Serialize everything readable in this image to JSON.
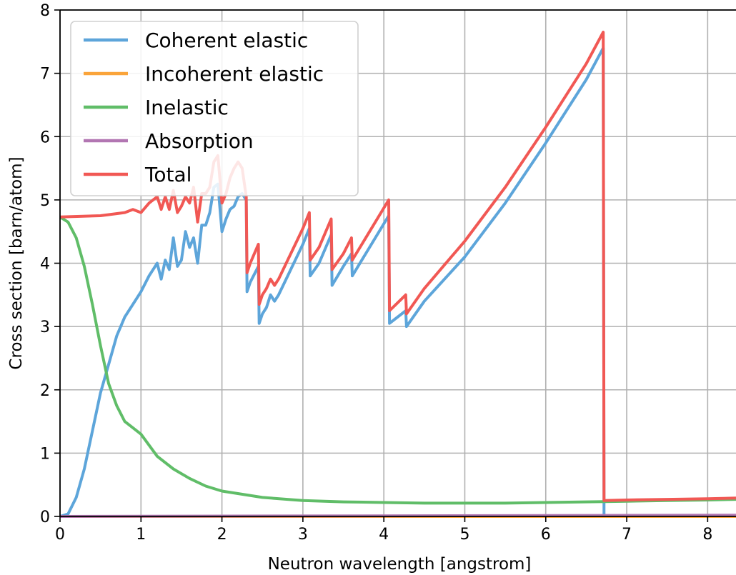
{
  "chart_data": {
    "type": "line",
    "title": "",
    "xlabel": "Neutron wavelength [angstrom]",
    "ylabel": "Cross section [barn/atom]",
    "xlim": [
      0,
      8.35
    ],
    "ylim": [
      0,
      8
    ],
    "xticks": [
      "0",
      "1",
      "2",
      "3",
      "4",
      "5",
      "6",
      "7",
      "8"
    ],
    "yticks": [
      "0",
      "1",
      "2",
      "3",
      "4",
      "5",
      "6",
      "7",
      "8"
    ],
    "grid": true,
    "legend_position": "top-left",
    "series": [
      {
        "name": "Coherent elastic",
        "color": "#5DA5DA",
        "x": [
          0,
          0.1,
          0.2,
          0.3,
          0.4,
          0.5,
          0.6,
          0.7,
          0.8,
          0.9,
          1.0,
          1.1,
          1.2,
          1.25,
          1.3,
          1.35,
          1.4,
          1.45,
          1.5,
          1.55,
          1.6,
          1.65,
          1.7,
          1.75,
          1.8,
          1.85,
          1.9,
          1.95,
          2.0,
          2.05,
          2.1,
          2.15,
          2.2,
          2.25,
          2.3,
          2.31,
          2.35,
          2.45,
          2.46,
          2.5,
          2.55,
          2.6,
          2.65,
          2.7,
          3.0,
          3.08,
          3.09,
          3.2,
          3.35,
          3.36,
          3.5,
          3.6,
          3.61,
          4.06,
          4.07,
          4.27,
          4.28,
          4.5,
          5.0,
          5.5,
          6.0,
          6.5,
          6.71,
          6.72,
          7.0,
          8.35
        ],
        "values": [
          0,
          0.04,
          0.3,
          0.75,
          1.35,
          1.95,
          2.4,
          2.85,
          3.15,
          3.35,
          3.55,
          3.8,
          4.0,
          3.75,
          4.05,
          3.9,
          4.4,
          3.95,
          4.05,
          4.5,
          4.25,
          4.4,
          4.0,
          4.6,
          4.6,
          4.8,
          5.2,
          5.25,
          4.5,
          4.7,
          4.85,
          4.9,
          5.05,
          5.1,
          5.0,
          3.55,
          3.7,
          3.95,
          3.05,
          3.2,
          3.3,
          3.5,
          3.4,
          3.5,
          4.3,
          4.55,
          3.8,
          4.0,
          4.45,
          3.65,
          3.95,
          4.15,
          3.8,
          4.75,
          3.05,
          3.25,
          3.0,
          3.4,
          4.1,
          4.95,
          5.9,
          6.9,
          7.4,
          0.0,
          0.0,
          0.0
        ]
      },
      {
        "name": "Incoherent elastic",
        "color": "#FAA43A",
        "x": [
          0,
          8.35
        ],
        "values": [
          0.0,
          0.0
        ]
      },
      {
        "name": "Inelastic",
        "color": "#60BD68",
        "x": [
          0,
          0.1,
          0.2,
          0.3,
          0.4,
          0.5,
          0.6,
          0.7,
          0.8,
          0.9,
          1.0,
          1.2,
          1.4,
          1.6,
          1.8,
          2.0,
          2.5,
          3.0,
          3.5,
          4.0,
          4.5,
          5.0,
          5.5,
          6.0,
          6.5,
          7.0,
          7.5,
          8.0,
          8.35
        ],
        "values": [
          4.73,
          4.65,
          4.4,
          3.95,
          3.35,
          2.7,
          2.1,
          1.75,
          1.5,
          1.4,
          1.3,
          0.95,
          0.75,
          0.6,
          0.48,
          0.4,
          0.3,
          0.25,
          0.23,
          0.22,
          0.21,
          0.21,
          0.21,
          0.22,
          0.23,
          0.24,
          0.25,
          0.26,
          0.27
        ]
      },
      {
        "name": "Absorption",
        "color": "#B276B2",
        "x": [
          0,
          8.35
        ],
        "values": [
          0.0,
          0.02
        ]
      },
      {
        "name": "Total",
        "color": "#F15854",
        "x": [
          0,
          0.5,
          0.8,
          0.9,
          1.0,
          1.1,
          1.2,
          1.25,
          1.3,
          1.35,
          1.4,
          1.45,
          1.5,
          1.55,
          1.6,
          1.65,
          1.7,
          1.75,
          1.8,
          1.85,
          1.9,
          1.95,
          2.0,
          2.05,
          2.1,
          2.15,
          2.2,
          2.25,
          2.3,
          2.31,
          2.35,
          2.45,
          2.46,
          2.5,
          2.55,
          2.6,
          2.65,
          2.7,
          3.0,
          3.08,
          3.09,
          3.2,
          3.35,
          3.36,
          3.5,
          3.6,
          3.61,
          4.06,
          4.07,
          4.27,
          4.28,
          4.5,
          5.0,
          5.5,
          6.0,
          6.5,
          6.71,
          6.72,
          7.0,
          7.5,
          8.0,
          8.35
        ],
        "values": [
          4.73,
          4.75,
          4.8,
          4.85,
          4.8,
          4.95,
          5.05,
          4.85,
          5.05,
          4.85,
          5.15,
          4.8,
          4.9,
          5.05,
          4.95,
          5.2,
          4.65,
          5.1,
          5.1,
          5.2,
          5.6,
          5.7,
          4.95,
          5.1,
          5.35,
          5.5,
          5.6,
          5.5,
          5.05,
          3.85,
          4.0,
          4.3,
          3.35,
          3.5,
          3.6,
          3.75,
          3.65,
          3.75,
          4.55,
          4.8,
          4.05,
          4.25,
          4.7,
          3.9,
          4.15,
          4.4,
          4.05,
          5.0,
          3.25,
          3.5,
          3.2,
          3.6,
          4.35,
          5.2,
          6.15,
          7.15,
          7.65,
          0.25,
          0.26,
          0.27,
          0.28,
          0.29
        ]
      }
    ]
  }
}
